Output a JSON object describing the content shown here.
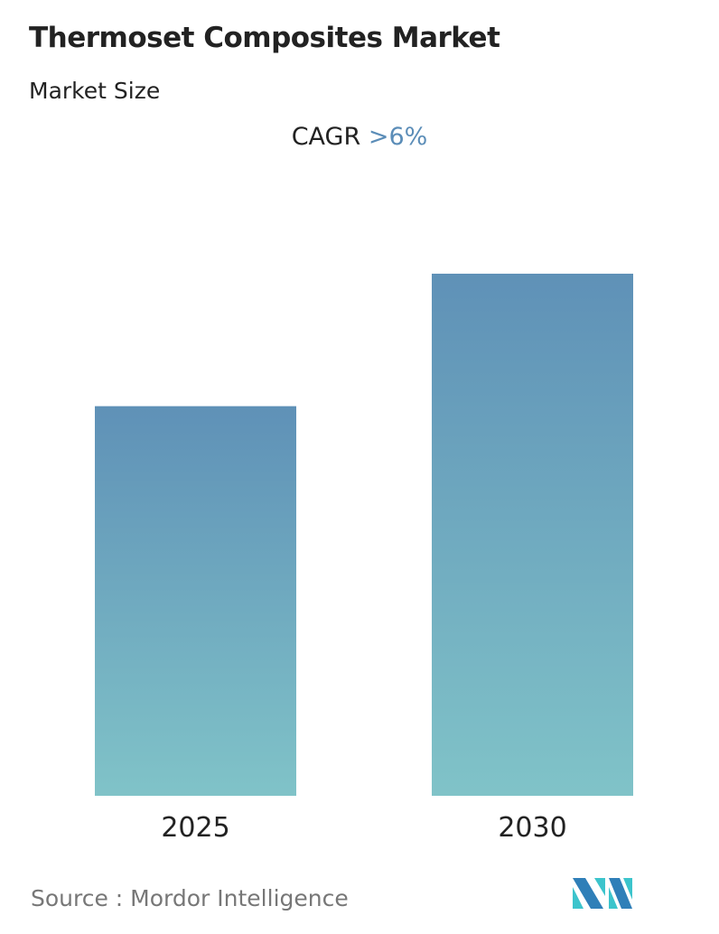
{
  "title": "Thermoset Composites Market",
  "subtitle": "Market Size",
  "cagr": {
    "label": "CAGR",
    "value": ">6%"
  },
  "source": "Source :  Mordor Intelligence",
  "colors": {
    "bar_top": "#5f91b7",
    "bar_bottom": "#80c3c8",
    "cagr_value": "#5b8db8",
    "logo_dark": "#2f7fb8",
    "logo_light": "#3cc4cc"
  },
  "chart_data": {
    "type": "bar",
    "categories": [
      "2025",
      "2030"
    ],
    "values": [
      1.0,
      1.34
    ],
    "xlabel": "",
    "ylabel": "",
    "grid": false,
    "legend": "none"
  }
}
